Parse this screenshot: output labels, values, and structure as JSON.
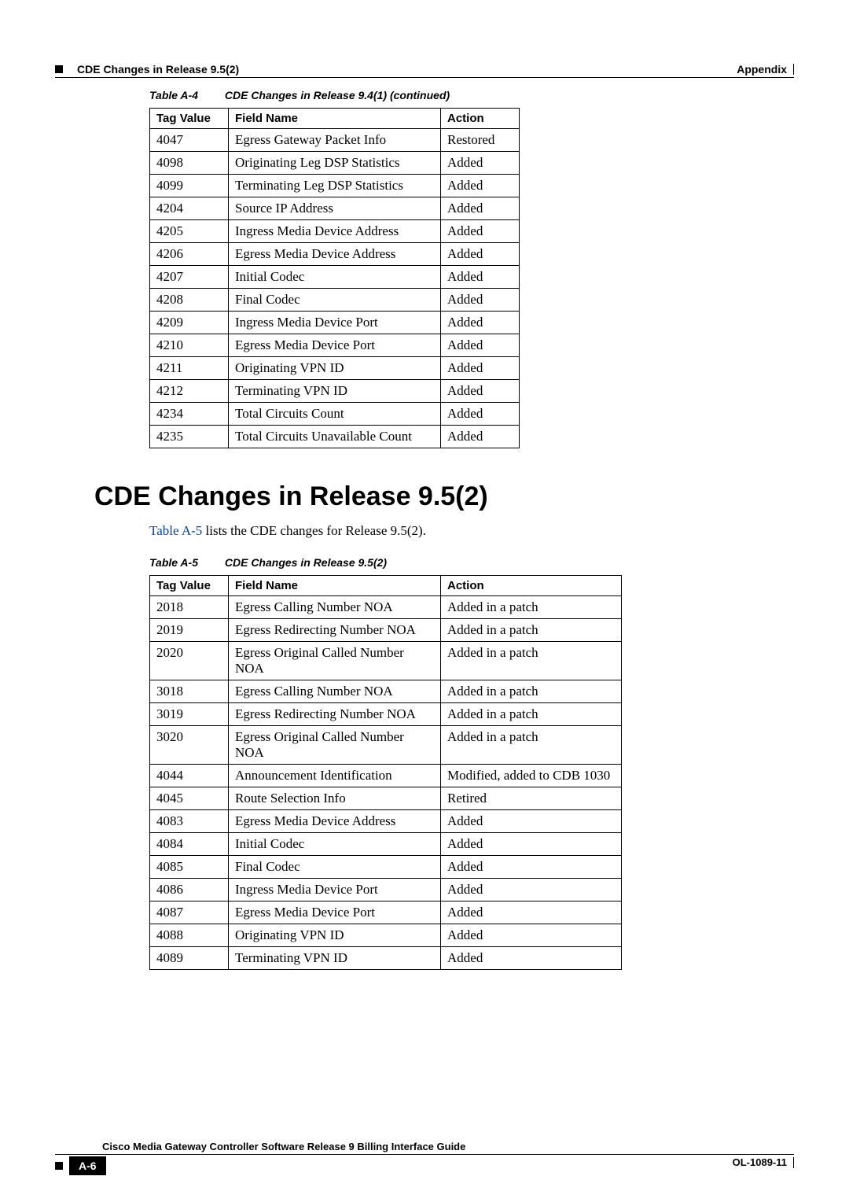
{
  "header": {
    "right_label": "Appendix",
    "left_label": "CDE Changes in Release 9.5(2)"
  },
  "table_a4": {
    "caption_label": "Table A-4",
    "caption_title": "CDE Changes in Release 9.4(1)  (continued)",
    "columns": [
      "Tag Value",
      "Field Name",
      "Action"
    ],
    "rows": [
      [
        "4047",
        "Egress Gateway Packet Info",
        "Restored"
      ],
      [
        "4098",
        "Originating Leg DSP Statistics",
        "Added"
      ],
      [
        "4099",
        "Terminating Leg DSP Statistics",
        "Added"
      ],
      [
        "4204",
        "Source IP Address",
        "Added"
      ],
      [
        "4205",
        "Ingress Media Device Address",
        "Added"
      ],
      [
        "4206",
        "Egress Media Device Address",
        "Added"
      ],
      [
        "4207",
        "Initial Codec",
        "Added"
      ],
      [
        "4208",
        "Final Codec",
        "Added"
      ],
      [
        "4209",
        "Ingress Media Device Port",
        "Added"
      ],
      [
        "4210",
        "Egress Media Device Port",
        "Added"
      ],
      [
        "4211",
        "Originating VPN ID",
        "Added"
      ],
      [
        "4212",
        "Terminating VPN ID",
        "Added"
      ],
      [
        "4234",
        "Total Circuits Count",
        "Added"
      ],
      [
        "4235",
        "Total Circuits Unavailable Count",
        "Added"
      ]
    ]
  },
  "section": {
    "heading": "CDE Changes in Release 9.5(2)",
    "intro_link": "Table A-5",
    "intro_rest": " lists the CDE changes for Release 9.5(2)."
  },
  "table_a5": {
    "caption_label": "Table A-5",
    "caption_title": "CDE Changes in Release 9.5(2)",
    "columns": [
      "Tag Value",
      "Field Name",
      "Action"
    ],
    "rows": [
      [
        "2018",
        "Egress Calling Number NOA",
        "Added in a patch"
      ],
      [
        "2019",
        "Egress Redirecting Number NOA",
        "Added in a patch"
      ],
      [
        "2020",
        "Egress Original Called Number NOA",
        "Added in a patch"
      ],
      [
        "3018",
        "Egress Calling Number NOA",
        "Added in a patch"
      ],
      [
        "3019",
        "Egress Redirecting Number NOA",
        "Added in a patch"
      ],
      [
        "3020",
        "Egress Original Called Number NOA",
        "Added in a patch"
      ],
      [
        "4044",
        "Announcement Identification",
        "Modified, added to CDB 1030"
      ],
      [
        "4045",
        "Route Selection Info",
        "Retired"
      ],
      [
        "4083",
        "Egress Media Device Address",
        "Added"
      ],
      [
        "4084",
        "Initial Codec",
        "Added"
      ],
      [
        "4085",
        "Final Codec",
        "Added"
      ],
      [
        "4086",
        "Ingress Media Device Port",
        "Added"
      ],
      [
        "4087",
        "Egress Media Device Port",
        "Added"
      ],
      [
        "4088",
        "Originating VPN ID",
        "Added"
      ],
      [
        "4089",
        "Terminating VPN ID",
        "Added"
      ]
    ]
  },
  "footer": {
    "book_title": "Cisco Media Gateway Controller Software Release 9 Billing Interface Guide",
    "page_num": "A-6",
    "doc_id": "OL-1089-11"
  }
}
